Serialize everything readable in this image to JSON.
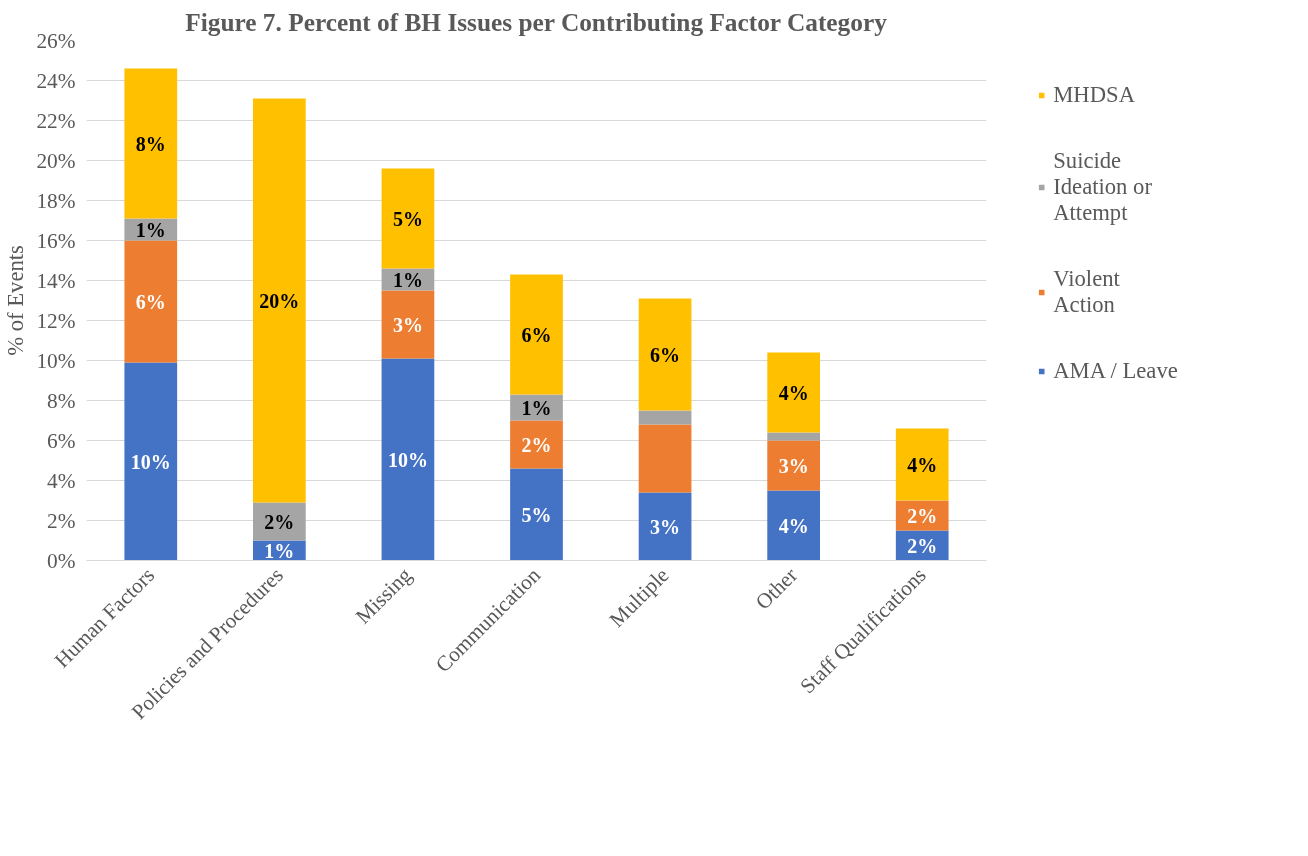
{
  "chart_data": {
    "type": "bar",
    "stacked": true,
    "title": "Figure 7. Percent of BH Issues per Contributing Factor Category",
    "ylabel": "% of Events",
    "categories": [
      "Human Factors",
      "Policies and Procedures",
      "Missing",
      "Communication",
      "Multiple",
      "Other",
      "Staff Qualifications"
    ],
    "series": [
      {
        "name": "AMA / Leave",
        "color": "#4472c4",
        "values": [
          9.9,
          1.0,
          10.1,
          4.6,
          3.4,
          3.5,
          1.5
        ],
        "value_labels": [
          "10%",
          "1%",
          "10%",
          "5%",
          "3%",
          "4%",
          "2%"
        ]
      },
      {
        "name": "Violent Action",
        "color": "#ed7d31",
        "values": [
          6.1,
          0,
          3.4,
          2.4,
          3.4,
          2.5,
          1.5
        ],
        "value_labels": [
          "6%",
          null,
          "3%",
          "2%",
          null,
          "3%",
          "2%"
        ]
      },
      {
        "name": "Suicide Ideation or Attempt",
        "color": "#a5a5a5",
        "values": [
          1.1,
          1.9,
          1.1,
          1.3,
          0.7,
          0.4,
          0
        ],
        "value_labels": [
          "1%",
          "2%",
          "1%",
          "1%",
          null,
          null,
          null
        ]
      },
      {
        "name": "MHDSA",
        "color": "#ffc000",
        "values": [
          7.5,
          20.2,
          5.0,
          6.0,
          5.6,
          4.0,
          3.6
        ],
        "value_labels": [
          "8%",
          "20%",
          "5%",
          "6%",
          "6%",
          "4%",
          "4%"
        ]
      }
    ],
    "ylim": [
      0,
      26
    ],
    "yticks": [
      {
        "value": 0,
        "label": "0%"
      },
      {
        "value": 2,
        "label": "2%"
      },
      {
        "value": 4,
        "label": "4%"
      },
      {
        "value": 6,
        "label": "6%"
      },
      {
        "value": 8,
        "label": "8%"
      },
      {
        "value": 10,
        "label": "10%"
      },
      {
        "value": 12,
        "label": "12%"
      },
      {
        "value": 14,
        "label": "14%"
      },
      {
        "value": 16,
        "label": "16%"
      },
      {
        "value": 18,
        "label": "18%"
      },
      {
        "value": 20,
        "label": "20%"
      },
      {
        "value": 22,
        "label": "22%"
      },
      {
        "value": 24,
        "label": "24%"
      },
      {
        "value": 26,
        "label": "26%"
      }
    ],
    "grid": "y",
    "legend": "right"
  }
}
